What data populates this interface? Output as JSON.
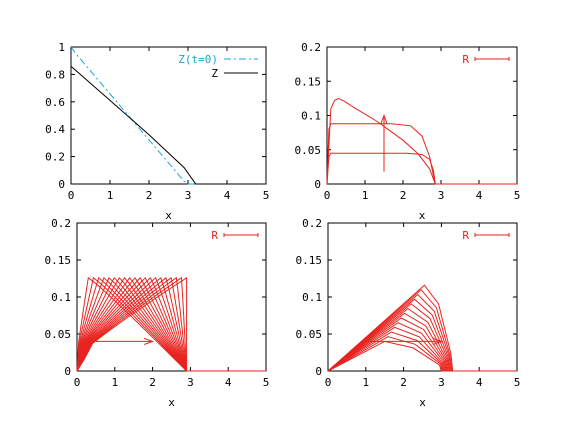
{
  "colors": {
    "z_initial": "#1aa3d6",
    "z_final": "#000000",
    "r": "#e8231f",
    "axis": "#000000"
  },
  "chart_data": [
    {
      "type": "line",
      "xlabel": "x",
      "xlim": [
        0,
        5
      ],
      "ylim": [
        0,
        1
      ],
      "xticks": [
        "0",
        "1",
        "2",
        "3",
        "4",
        "5"
      ],
      "yticks": [
        "0",
        "0.2",
        "0.4",
        "0.6",
        "0.8",
        "1"
      ],
      "legend_position": "top-right",
      "series": [
        {
          "name": "Z(t=0)",
          "style": "dash-dot",
          "color": "#1aa3d6",
          "x": [
            0,
            0.1,
            2.9,
            3.0,
            5.0
          ],
          "y": [
            1.0,
            0.96,
            0.02,
            0.0,
            0.0
          ]
        },
        {
          "name": "Z",
          "style": "solid",
          "color": "#000000",
          "x": [
            0,
            1.0,
            2.0,
            2.9,
            3.15,
            3.2,
            5.0
          ],
          "y": [
            0.86,
            0.61,
            0.36,
            0.12,
            0.02,
            0.0,
            0.0
          ]
        }
      ]
    },
    {
      "type": "line",
      "xlabel": "x",
      "xlim": [
        0,
        5
      ],
      "ylim": [
        0,
        0.2
      ],
      "xticks": [
        "0",
        "1",
        "2",
        "3",
        "4",
        "5"
      ],
      "yticks": [
        "0",
        "0.05",
        "0.1",
        "0.15",
        "0.2"
      ],
      "legend_position": "top-right",
      "legend": "R",
      "series": [
        {
          "x": [
            0,
            0.05,
            0.1,
            2.1,
            2.5,
            2.7,
            2.8,
            2.85,
            5.0
          ],
          "y": [
            0,
            0.04,
            0.045,
            0.045,
            0.043,
            0.036,
            0.02,
            0,
            0
          ]
        },
        {
          "x": [
            0,
            0.05,
            0.1,
            1.7,
            2.2,
            2.5,
            2.7,
            2.8,
            2.85,
            5.0
          ],
          "y": [
            0,
            0.08,
            0.088,
            0.088,
            0.085,
            0.07,
            0.04,
            0.012,
            0,
            0
          ]
        },
        {
          "x": [
            0,
            0.1,
            0.2,
            0.3,
            0.45,
            0.7,
            1.0,
            1.3,
            1.6,
            2.0,
            2.4,
            2.7,
            2.85,
            5.0
          ],
          "y": [
            0,
            0.11,
            0.122,
            0.125,
            0.121,
            0.112,
            0.102,
            0.092,
            0.08,
            0.064,
            0.044,
            0.022,
            0,
            0
          ]
        }
      ],
      "arrow": {
        "x": 1.5,
        "y_from": 0.018,
        "y_to": 0.1
      }
    },
    {
      "type": "line",
      "xlabel": "x",
      "xlim": [
        0,
        5
      ],
      "ylim": [
        0,
        0.2
      ],
      "xticks": [
        "0",
        "1",
        "2",
        "3",
        "4",
        "5"
      ],
      "yticks": [
        "0",
        "0.05",
        "0.1",
        "0.15",
        "0.2"
      ],
      "legend_position": "top-right",
      "legend": "R",
      "family": {
        "count": 20,
        "x_start": 0.3,
        "x_end": 2.9,
        "peak": 0.126,
        "span": 2.9
      },
      "arrow": {
        "y": 0.04,
        "x_from": 0.3,
        "x_to": 2.0
      }
    },
    {
      "type": "line",
      "xlabel": "x",
      "xlim": [
        0,
        5
      ],
      "ylim": [
        0,
        0.2
      ],
      "xticks": [
        "0",
        "1",
        "2",
        "3",
        "4",
        "5"
      ],
      "yticks": [
        "0",
        "0.05",
        "0.1",
        "0.15",
        "0.2"
      ],
      "legend_position": "top-right",
      "legend": "R",
      "family": {
        "count": 13,
        "peak_x_start": 1.5,
        "peak_x_end": 2.55,
        "peak_start": 0.04,
        "peak_end": 0.116,
        "zero_x_start": 3.0,
        "zero_x_end": 3.3
      },
      "arrow": {
        "y": 0.04,
        "x_from": 1.0,
        "x_to": 3.0
      }
    }
  ]
}
